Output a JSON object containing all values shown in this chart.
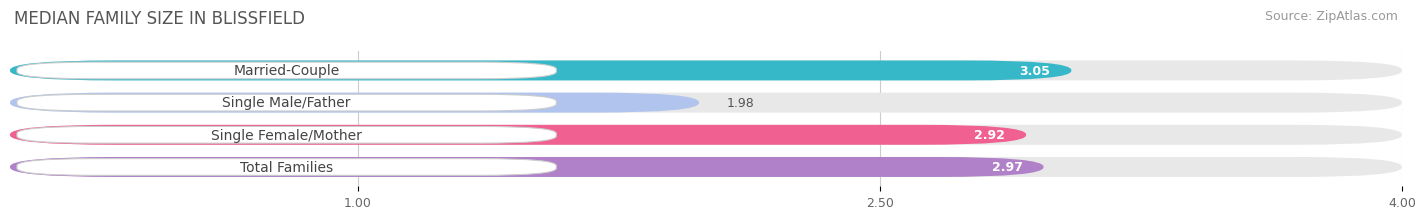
{
  "title": "MEDIAN FAMILY SIZE IN BLISSFIELD",
  "source": "Source: ZipAtlas.com",
  "categories": [
    "Married-Couple",
    "Single Male/Father",
    "Single Female/Mother",
    "Total Families"
  ],
  "values": [
    3.05,
    1.98,
    2.92,
    2.97
  ],
  "bar_colors": [
    "#36b8c8",
    "#b0c4ee",
    "#f06090",
    "#b080c8"
  ],
  "xlim_min": 0.0,
  "xlim_max": 4.0,
  "xticks": [
    1.0,
    2.5,
    4.0
  ],
  "xtick_labels": [
    "1.00",
    "2.50",
    "4.00"
  ],
  "bar_height": 0.62,
  "bg_color": "#ffffff",
  "bar_bg_color": "#e8e8e8",
  "title_fontsize": 12,
  "source_fontsize": 9,
  "label_fontsize": 10,
  "value_fontsize": 9,
  "value_threshold": 2.5
}
